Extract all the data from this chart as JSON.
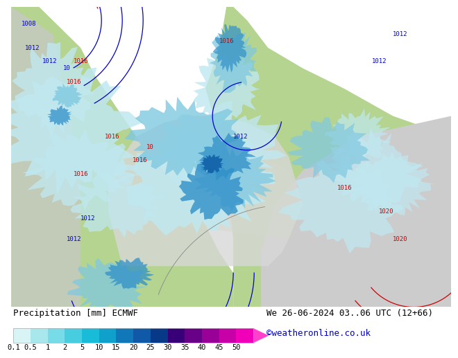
{
  "title_left": "Precipitation [mm] ECMWF",
  "title_right": "We 26-06-2024 03..06 UTC (12+66)",
  "credit": "©weatheronline.co.uk",
  "colorbar_values": [
    0.1,
    0.5,
    1,
    2,
    5,
    10,
    15,
    20,
    25,
    30,
    35,
    40,
    45,
    50
  ],
  "colorbar_colors": [
    "#d8f4f4",
    "#a8e8ec",
    "#78dce8",
    "#48cce0",
    "#18bcd8",
    "#10a0cc",
    "#1078b8",
    "#1058a8",
    "#083888",
    "#380078",
    "#680088",
    "#980098",
    "#c800a8",
    "#f000b8",
    "#ff40cc"
  ],
  "land_color": "#b8d898",
  "ocean_color_left": "#c8e8a0",
  "ocean_color_right": "#d8d8d8",
  "bg_color": "#ffffff",
  "precip_light": "#c8eef0",
  "precip_mid": "#88cce0",
  "precip_dark": "#2080c0",
  "isobar_red": "#cc0000",
  "isobar_blue": "#0000cc",
  "isobar_gray": "#888888",
  "title_fontsize": 9,
  "credit_fontsize": 9,
  "tick_fontsize": 7.5
}
